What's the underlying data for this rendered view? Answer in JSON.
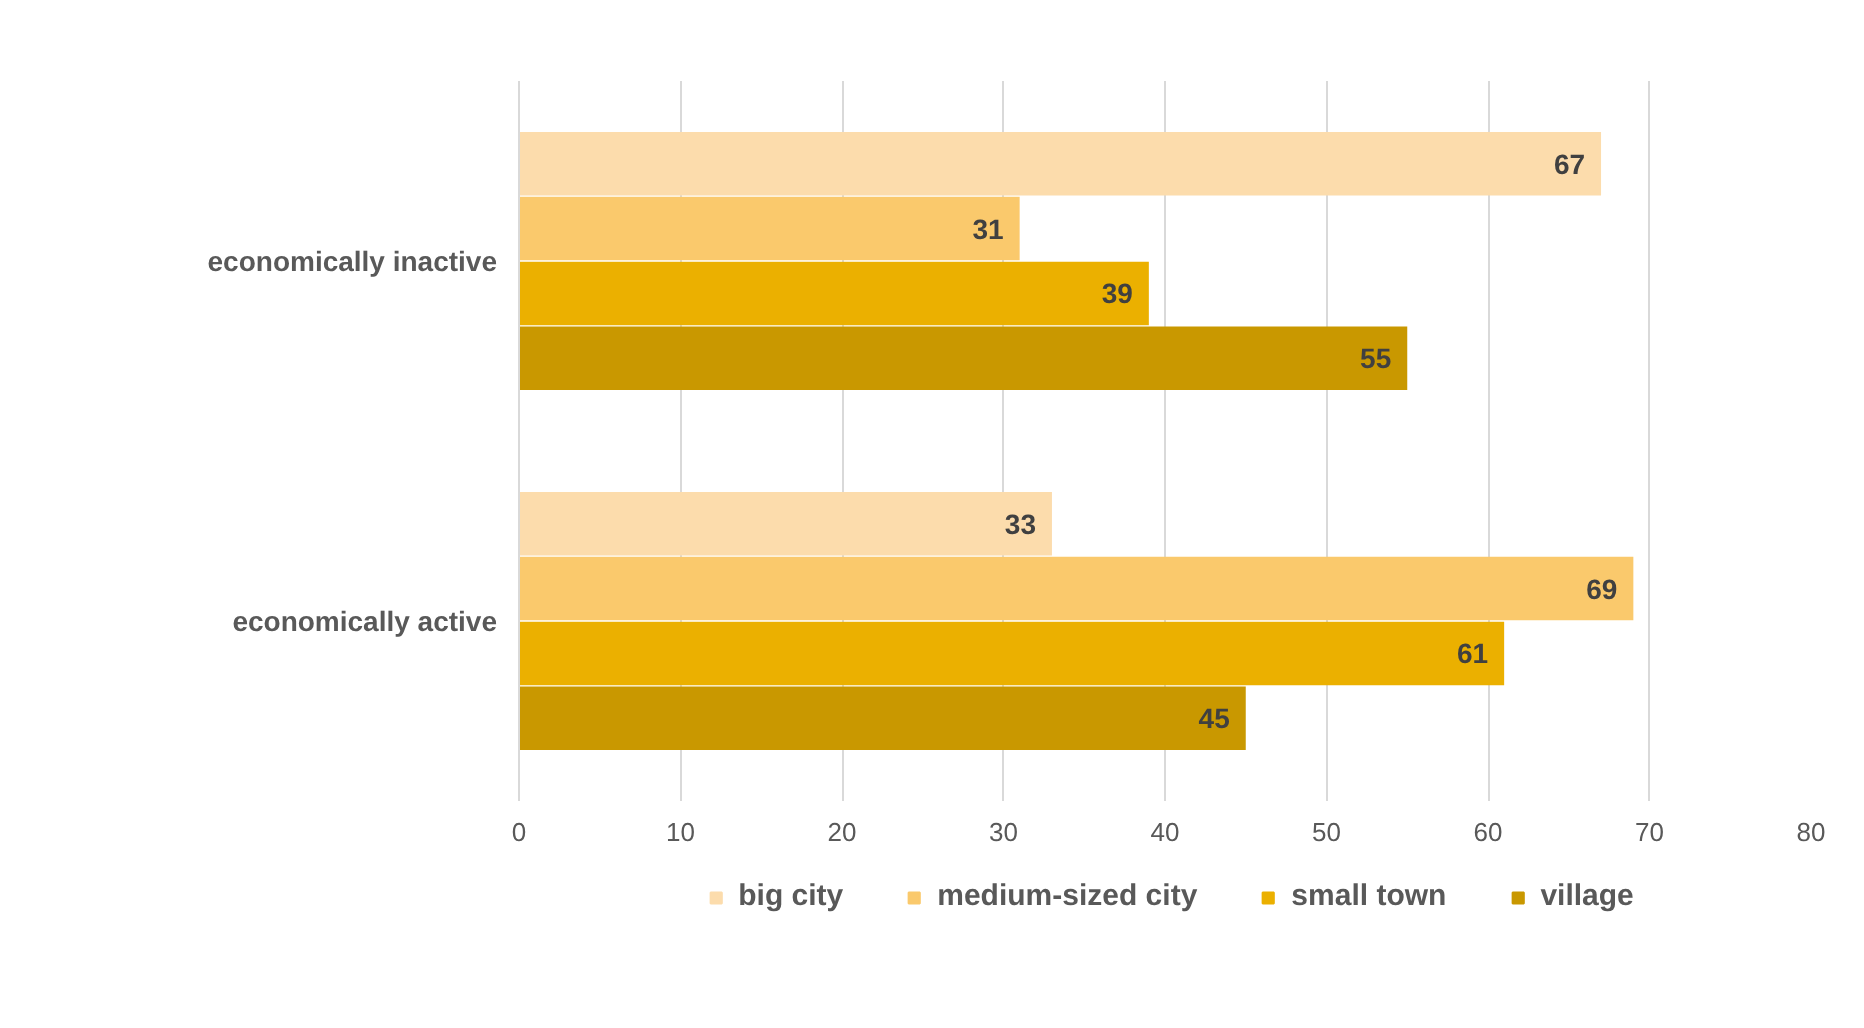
{
  "chart_data": {
    "type": "bar",
    "orientation": "horizontal",
    "categories": [
      "economically inactive",
      "economically active"
    ],
    "series": [
      {
        "name": "big city",
        "color": "#fcdcac",
        "values": [
          67,
          33
        ]
      },
      {
        "name": "medium-sized city",
        "color": "#fac96c",
        "values": [
          31,
          69
        ]
      },
      {
        "name": "small town",
        "color": "#ebb000",
        "values": [
          39,
          61
        ]
      },
      {
        "name": "village",
        "color": "#c99800",
        "values": [
          55,
          45
        ]
      }
    ],
    "xlim": [
      0,
      80
    ],
    "xticks": [
      0,
      10,
      20,
      30,
      40,
      50,
      60,
      70,
      80
    ],
    "grid": "x",
    "legend": "bottom",
    "data_labels": true
  }
}
